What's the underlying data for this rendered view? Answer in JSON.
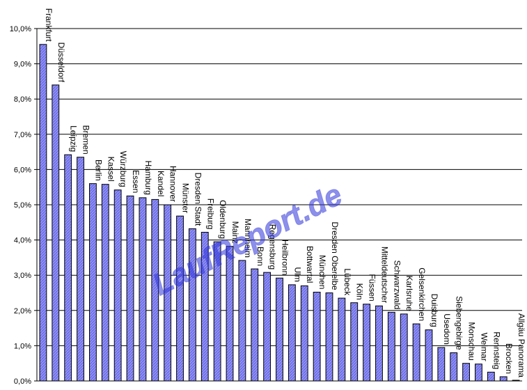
{
  "chart_data": {
    "type": "bar",
    "title": "",
    "xlabel": "",
    "ylabel": "",
    "ylim": [
      0,
      10
    ],
    "y_tick_labels": [
      "0,0%",
      "1,0%",
      "2,0%",
      "3,0%",
      "4,0%",
      "5,0%",
      "6,0%",
      "7,0%",
      "8,0%",
      "9,0%",
      "10,0%"
    ],
    "y_ticks": [
      0,
      1,
      2,
      3,
      4,
      5,
      6,
      7,
      8,
      9,
      10
    ],
    "grid": true,
    "legend": "none",
    "bar_color": "#8888f0",
    "bar_pattern": "hatched",
    "categories": [
      "Frankfurt",
      "Düsseldorf",
      "Leipzig",
      "Bremen",
      "Berlin",
      "Kassel",
      "Würzburg",
      "Essen",
      "Hamburg",
      "Kandel",
      "Hannover",
      "Münster",
      "Dresden Stadt",
      "Freiburg",
      "Oldenburg",
      "Mainz",
      "Mannheim",
      "Bonn",
      "Regensburg",
      "Heilbronn",
      "Ulm",
      "Bottwartal",
      "München",
      "Dresden Oberelbe",
      "Lübeck",
      "Köln",
      "Füssen",
      "Mitteldeutscher",
      "Schwarzwald",
      "Karlsruhe",
      "Gelsenkirchen",
      "Duisburg",
      "Usedom",
      "Siebengebirge",
      "Monschau",
      "Weimar",
      "Rennsteig",
      "Brocken",
      "Allgäu Panorama"
    ],
    "values": [
      9.55,
      8.4,
      6.42,
      6.35,
      5.6,
      5.58,
      5.42,
      5.25,
      5.2,
      5.15,
      5.0,
      4.68,
      4.32,
      4.22,
      3.95,
      3.82,
      3.42,
      3.18,
      3.08,
      2.92,
      2.73,
      2.7,
      2.52,
      2.5,
      2.35,
      2.22,
      2.18,
      2.13,
      1.95,
      1.9,
      1.62,
      1.45,
      0.95,
      0.8,
      0.5,
      0.48,
      0.25,
      0.12,
      0.02
    ]
  },
  "watermark": {
    "text": "LaufReport.de"
  }
}
